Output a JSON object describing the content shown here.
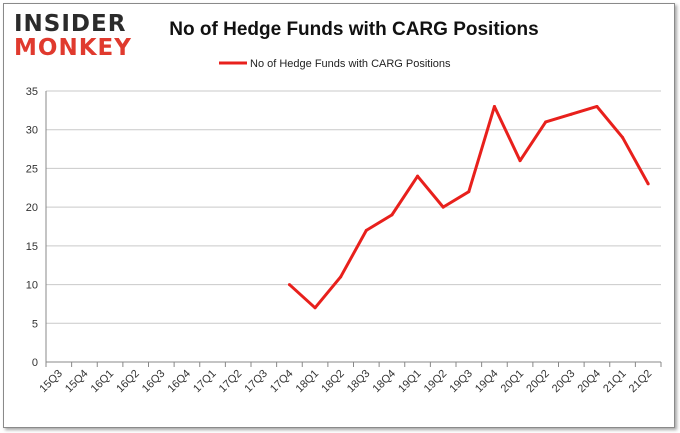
{
  "brand": {
    "line1": "INSIDER",
    "line2": "MONKEY"
  },
  "chart_data": {
    "type": "line",
    "title": "No of Hedge Funds with CARG Positions",
    "categories": [
      "15Q3",
      "15Q4",
      "16Q1",
      "16Q2",
      "16Q3",
      "16Q4",
      "17Q1",
      "17Q2",
      "17Q3",
      "17Q4",
      "18Q1",
      "18Q2",
      "18Q3",
      "18Q4",
      "19Q1",
      "19Q2",
      "19Q3",
      "19Q4",
      "20Q1",
      "20Q2",
      "20Q3",
      "20Q4",
      "21Q1",
      "21Q2"
    ],
    "series": [
      {
        "name": "No of Hedge Funds with CARG Positions",
        "values": [
          null,
          null,
          null,
          null,
          null,
          null,
          null,
          null,
          null,
          10,
          7,
          11,
          17,
          19,
          24,
          20,
          22,
          33,
          26,
          31,
          32,
          33,
          29,
          23
        ]
      }
    ],
    "yticks": [
      0,
      5,
      10,
      15,
      20,
      25,
      30,
      35
    ],
    "ylim": [
      0,
      35
    ],
    "grid": true,
    "legend": "top-center",
    "color": "#e8201c"
  }
}
